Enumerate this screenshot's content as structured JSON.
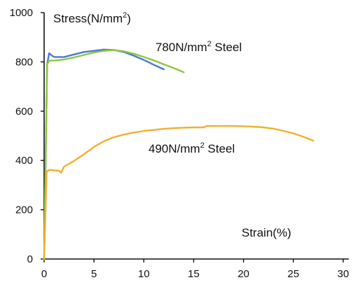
{
  "chart_data": {
    "type": "line",
    "xlabel": "Strain(%)",
    "ylabel": "Stress(N/mm",
    "ylabel_sup": "2",
    "ylabel_suffix": ")",
    "xlim": [
      0,
      30
    ],
    "ylim": [
      0,
      1000
    ],
    "xticks": [
      0,
      5,
      10,
      15,
      20,
      25,
      30
    ],
    "yticks": [
      0,
      200,
      400,
      600,
      800,
      1000
    ],
    "grid": false,
    "annotations": [
      {
        "id": "ann-780",
        "pre": "780N/mm",
        "sup": "2",
        "post": " Steel",
        "x": 11.2,
        "y": 845
      },
      {
        "id": "ann-490",
        "pre": "490N/mm",
        "sup": "2",
        "post": " Steel",
        "x": 10.5,
        "y": 445
      }
    ],
    "series": [
      {
        "color": "#4a78e0",
        "points": [
          [
            0,
            0
          ],
          [
            0.3,
            790
          ],
          [
            0.5,
            835
          ],
          [
            0.8,
            825
          ],
          [
            1,
            820
          ],
          [
            2,
            820
          ],
          [
            3,
            830
          ],
          [
            4,
            840
          ],
          [
            5,
            845
          ],
          [
            6,
            850
          ],
          [
            7,
            848
          ],
          [
            8,
            840
          ],
          [
            9,
            825
          ],
          [
            10,
            808
          ],
          [
            11,
            788
          ],
          [
            12,
            770
          ]
        ]
      },
      {
        "color": "#8cc83a",
        "points": [
          [
            0,
            0
          ],
          [
            0.3,
            790
          ],
          [
            0.5,
            805
          ],
          [
            1,
            805
          ],
          [
            2,
            810
          ],
          [
            3,
            818
          ],
          [
            4,
            828
          ],
          [
            5,
            838
          ],
          [
            6,
            845
          ],
          [
            7,
            848
          ],
          [
            8,
            843
          ],
          [
            9,
            833
          ],
          [
            10,
            820
          ],
          [
            11,
            806
          ],
          [
            12,
            790
          ],
          [
            13,
            775
          ],
          [
            14,
            758
          ]
        ]
      },
      {
        "color": "#f0b030",
        "points": [
          [
            0,
            0
          ],
          [
            0.25,
            355
          ],
          [
            0.5,
            362
          ],
          [
            1,
            360
          ],
          [
            1.5,
            358
          ],
          [
            1.7,
            350
          ],
          [
            2,
            375
          ],
          [
            3,
            398
          ],
          [
            4,
            425
          ],
          [
            5,
            455
          ],
          [
            6,
            478
          ],
          [
            7,
            494
          ],
          [
            8,
            505
          ],
          [
            9,
            513
          ],
          [
            10,
            520
          ],
          [
            11,
            524
          ],
          [
            12,
            528
          ],
          [
            13,
            531
          ],
          [
            14,
            533
          ],
          [
            15,
            534
          ],
          [
            16,
            534
          ],
          [
            16.3,
            540
          ],
          [
            17,
            540
          ],
          [
            18,
            540
          ],
          [
            19,
            540
          ],
          [
            20,
            539
          ],
          [
            21,
            537
          ],
          [
            22,
            534
          ],
          [
            23,
            529
          ],
          [
            24,
            520
          ],
          [
            25,
            510
          ],
          [
            26,
            496
          ],
          [
            27,
            480
          ]
        ]
      }
    ]
  }
}
